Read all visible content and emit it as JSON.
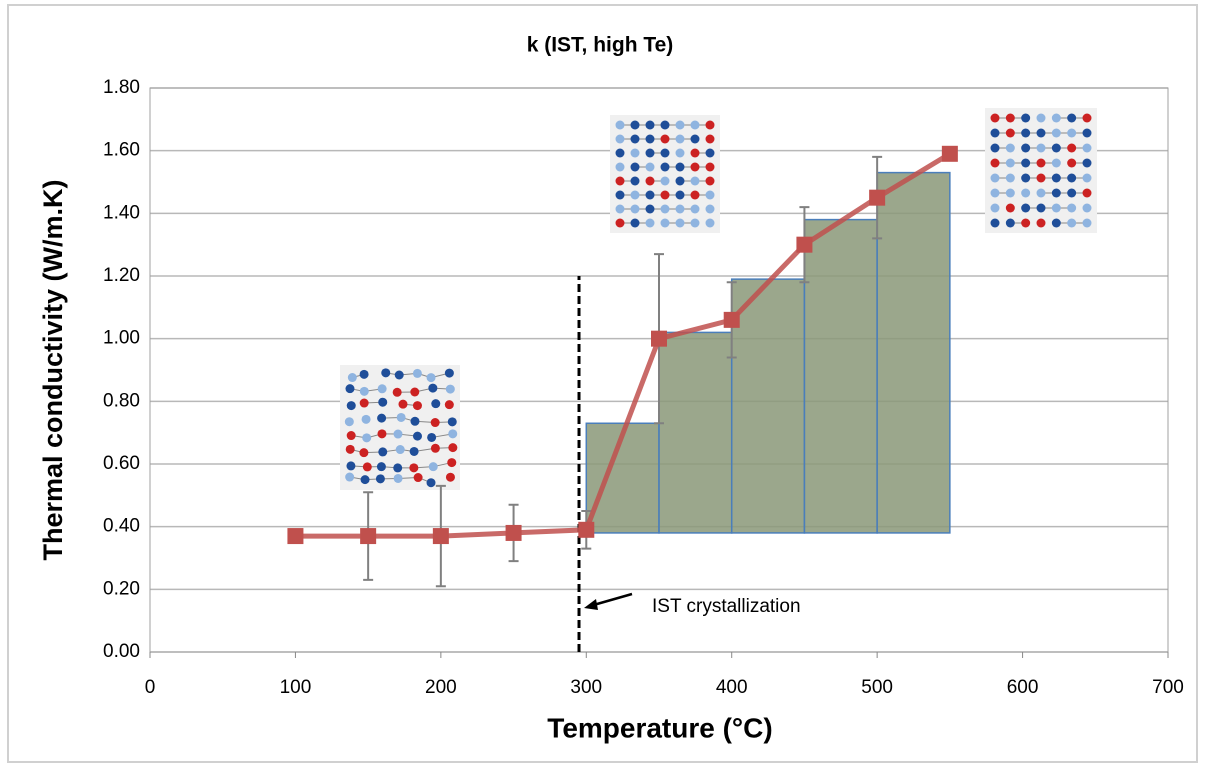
{
  "chart_data": {
    "type": "line",
    "title": "k (IST, high Te)",
    "x_label": "Temperature (°C)",
    "y_label": "Thermal conductivity (W/m.K)",
    "xlim": [
      0,
      700
    ],
    "xticks": [
      0,
      100,
      200,
      300,
      400,
      500,
      600,
      700
    ],
    "ylim": [
      0,
      1.8
    ],
    "yticks": [
      {
        "value": 0,
        "label": "0.00"
      },
      {
        "value": 0.2,
        "label": "0.20"
      },
      {
        "value": 0.4,
        "label": "0.40"
      },
      {
        "value": 0.6,
        "label": "0.60"
      },
      {
        "value": 0.8,
        "label": "0.80"
      },
      {
        "value": 1.0,
        "label": "1.00"
      },
      {
        "value": 1.2,
        "label": "1.20"
      },
      {
        "value": 1.4,
        "label": "1.40"
      },
      {
        "value": 1.6,
        "label": "1.60"
      },
      {
        "value": 1.8,
        "label": "1.80"
      }
    ],
    "grid": true,
    "series": [
      {
        "color": "#c0504d",
        "x": [
          100,
          150,
          200,
          250,
          300,
          350,
          400,
          450,
          500,
          550
        ],
        "values": [
          0.37,
          0.37,
          0.37,
          0.38,
          0.39,
          1.0,
          1.06,
          1.3,
          1.45,
          1.59
        ],
        "errors": [
          null,
          0.14,
          0.16,
          0.09,
          0.06,
          0.27,
          0.12,
          0.12,
          0.13,
          null
        ]
      }
    ],
    "step_bars": {
      "bins": [
        300,
        350,
        400,
        450,
        500,
        550
      ],
      "values": [
        0.73,
        1.02,
        1.19,
        1.38,
        1.53
      ],
      "base": 0.38,
      "color": "#8a9878",
      "edge": "#4a7ebb"
    },
    "vline": {
      "x": 295,
      "ymax": 1.2
    },
    "annotation": "IST crystallization"
  }
}
